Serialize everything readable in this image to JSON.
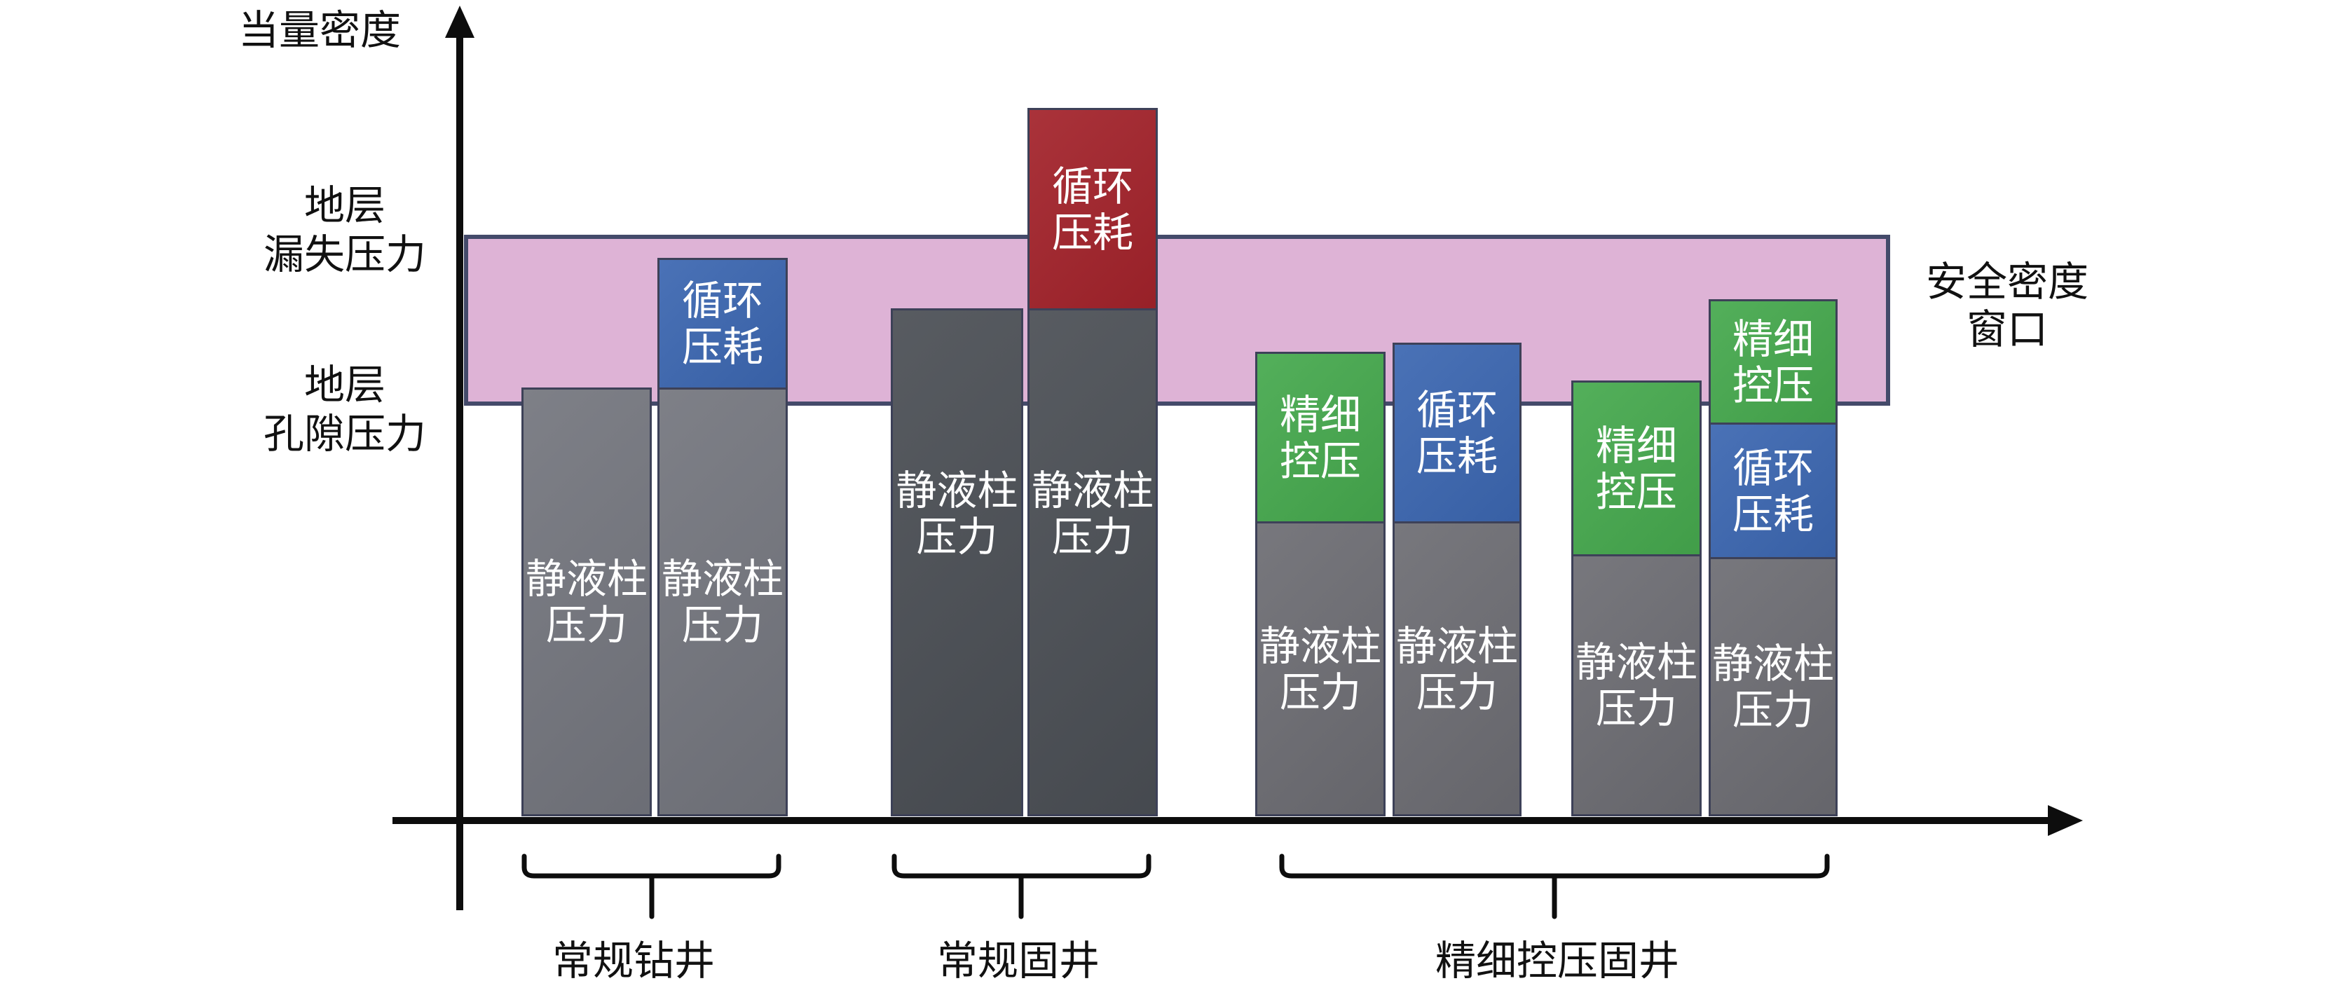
{
  "y_axis": {
    "label": "当量密度"
  },
  "levels": {
    "leakage_pressure": {
      "lines": [
        "地层",
        "漏失压力"
      ]
    },
    "pore_pressure": {
      "lines": [
        "地层",
        "孔隙压力"
      ]
    }
  },
  "safe_window": {
    "lines": [
      "安全密度",
      "窗口"
    ]
  },
  "groups": [
    {
      "label": "常规钻井",
      "bars": [
        {
          "segments": [
            {
              "lines": [
                "静液柱",
                "压力"
              ]
            }
          ]
        },
        {
          "segments": [
            {
              "lines": [
                "静液柱",
                "压力"
              ]
            },
            {
              "lines": [
                "循环",
                "压耗"
              ]
            }
          ]
        }
      ]
    },
    {
      "label": "常规固井",
      "bars": [
        {
          "segments": [
            {
              "lines": [
                "静液柱",
                "压力"
              ]
            }
          ]
        },
        {
          "segments": [
            {
              "lines": [
                "静液柱",
                "压力"
              ]
            },
            {
              "lines": [
                "循环",
                "压耗"
              ]
            }
          ]
        }
      ]
    },
    {
      "label": "精细控压固井",
      "bars": [
        {
          "segments": [
            {
              "lines": [
                "静液柱",
                "压力"
              ]
            },
            {
              "lines": [
                "精细",
                "控压"
              ]
            }
          ]
        },
        {
          "segments": [
            {
              "lines": [
                "静液柱",
                "压力"
              ]
            },
            {
              "lines": [
                "循环",
                "压耗"
              ]
            }
          ]
        },
        {
          "segments": [
            {
              "lines": [
                "静液柱",
                "压力"
              ]
            },
            {
              "lines": [
                "精细",
                "控压"
              ]
            }
          ]
        },
        {
          "segments": [
            {
              "lines": [
                "静液柱",
                "压力"
              ]
            },
            {
              "lines": [
                "循环",
                "压耗"
              ]
            },
            {
              "lines": [
                "精细",
                "控压"
              ]
            }
          ]
        }
      ]
    }
  ],
  "colors": {
    "hydrostatic_drilling": "#74767e",
    "hydrostatic_cementing": "#4b4f55",
    "hydrostatic_mpd": "#6d6d73",
    "circulation_drilling": "#3c67b1",
    "circulation_cementing": "#a3232b",
    "pressure_control": "#46a94e",
    "safe_window_fill": "#deb3d6",
    "outline": "#444a6a"
  }
}
